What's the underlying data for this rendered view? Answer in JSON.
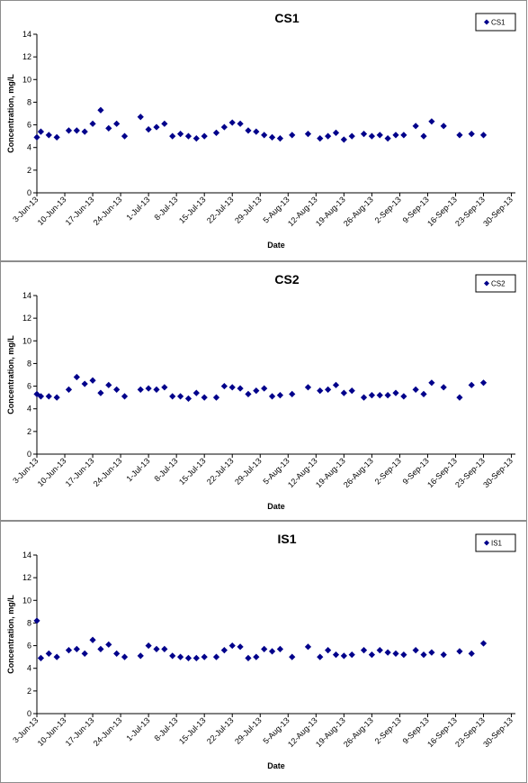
{
  "chart_data": [
    {
      "type": "scatter",
      "title": "CS1",
      "xlabel": "Date",
      "ylabel": "Concentration, mg/L",
      "ylim": [
        0,
        14
      ],
      "yticks": [
        0,
        2,
        4,
        6,
        8,
        10,
        12,
        14
      ],
      "x_tick_labels": [
        "3-Jun-13",
        "10-Jun-13",
        "17-Jun-13",
        "24-Jun-13",
        "1-Jul-13",
        "8-Jul-13",
        "15-Jul-13",
        "22-Jul-13",
        "29-Jul-13",
        "5-Aug-13",
        "12-Aug-13",
        "19-Aug-13",
        "26-Aug-13",
        "2-Sep-13",
        "9-Sep-13",
        "16-Sep-13",
        "23-Sep-13",
        "30-Sep-13"
      ],
      "xlim": [
        "2013-06-03",
        "2013-10-01"
      ],
      "legend_position": "top-right",
      "grid": false,
      "marker_color": "#00008B",
      "series": [
        {
          "name": "CS1",
          "points": [
            [
              "2013-06-03",
              4.9
            ],
            [
              "2013-06-04",
              5.4
            ],
            [
              "2013-06-06",
              5.1
            ],
            [
              "2013-06-08",
              4.9
            ],
            [
              "2013-06-11",
              5.5
            ],
            [
              "2013-06-13",
              5.5
            ],
            [
              "2013-06-15",
              5.4
            ],
            [
              "2013-06-17",
              6.1
            ],
            [
              "2013-06-19",
              7.3
            ],
            [
              "2013-06-21",
              5.7
            ],
            [
              "2013-06-23",
              6.1
            ],
            [
              "2013-06-25",
              5.0
            ],
            [
              "2013-06-29",
              6.7
            ],
            [
              "2013-07-01",
              5.6
            ],
            [
              "2013-07-03",
              5.8
            ],
            [
              "2013-07-05",
              6.1
            ],
            [
              "2013-07-07",
              5.0
            ],
            [
              "2013-07-09",
              5.2
            ],
            [
              "2013-07-11",
              5.0
            ],
            [
              "2013-07-13",
              4.8
            ],
            [
              "2013-07-15",
              5.0
            ],
            [
              "2013-07-18",
              5.3
            ],
            [
              "2013-07-20",
              5.8
            ],
            [
              "2013-07-22",
              6.2
            ],
            [
              "2013-07-24",
              6.1
            ],
            [
              "2013-07-26",
              5.5
            ],
            [
              "2013-07-28",
              5.4
            ],
            [
              "2013-07-30",
              5.1
            ],
            [
              "2013-08-01",
              4.9
            ],
            [
              "2013-08-03",
              4.8
            ],
            [
              "2013-08-06",
              5.1
            ],
            [
              "2013-08-10",
              5.2
            ],
            [
              "2013-08-13",
              4.8
            ],
            [
              "2013-08-15",
              5.0
            ],
            [
              "2013-08-17",
              5.3
            ],
            [
              "2013-08-19",
              4.7
            ],
            [
              "2013-08-21",
              5.0
            ],
            [
              "2013-08-24",
              5.2
            ],
            [
              "2013-08-26",
              5.0
            ],
            [
              "2013-08-28",
              5.1
            ],
            [
              "2013-08-30",
              4.8
            ],
            [
              "2013-09-01",
              5.1
            ],
            [
              "2013-09-03",
              5.1
            ],
            [
              "2013-09-06",
              5.9
            ],
            [
              "2013-09-08",
              5.0
            ],
            [
              "2013-09-10",
              6.3
            ],
            [
              "2013-09-13",
              5.9
            ],
            [
              "2013-09-17",
              5.1
            ],
            [
              "2013-09-20",
              5.2
            ],
            [
              "2013-09-23",
              5.1
            ]
          ]
        }
      ]
    },
    {
      "type": "scatter",
      "title": "CS2",
      "xlabel": "Date",
      "ylabel": "Concentration, mg/L",
      "ylim": [
        0,
        14
      ],
      "yticks": [
        0,
        2,
        4,
        6,
        8,
        10,
        12,
        14
      ],
      "x_tick_labels": [
        "3-Jun-13",
        "10-Jun-13",
        "17-Jun-13",
        "24-Jun-13",
        "1-Jul-13",
        "8-Jul-13",
        "15-Jul-13",
        "22-Jul-13",
        "29-Jul-13",
        "5-Aug-13",
        "12-Aug-13",
        "19-Aug-13",
        "26-Aug-13",
        "2-Sep-13",
        "9-Sep-13",
        "16-Sep-13",
        "23-Sep-13",
        "30-Sep-13"
      ],
      "xlim": [
        "2013-06-03",
        "2013-10-01"
      ],
      "legend_position": "top-right",
      "grid": false,
      "marker_color": "#00008B",
      "series": [
        {
          "name": "CS2",
          "points": [
            [
              "2013-06-03",
              5.3
            ],
            [
              "2013-06-04",
              5.1
            ],
            [
              "2013-06-06",
              5.1
            ],
            [
              "2013-06-08",
              5.0
            ],
            [
              "2013-06-11",
              5.7
            ],
            [
              "2013-06-13",
              6.8
            ],
            [
              "2013-06-15",
              6.2
            ],
            [
              "2013-06-17",
              6.5
            ],
            [
              "2013-06-19",
              5.4
            ],
            [
              "2013-06-21",
              6.1
            ],
            [
              "2013-06-23",
              5.7
            ],
            [
              "2013-06-25",
              5.1
            ],
            [
              "2013-06-29",
              5.7
            ],
            [
              "2013-07-01",
              5.8
            ],
            [
              "2013-07-03",
              5.7
            ],
            [
              "2013-07-05",
              5.9
            ],
            [
              "2013-07-07",
              5.1
            ],
            [
              "2013-07-09",
              5.1
            ],
            [
              "2013-07-11",
              4.9
            ],
            [
              "2013-07-13",
              5.4
            ],
            [
              "2013-07-15",
              5.0
            ],
            [
              "2013-07-18",
              5.0
            ],
            [
              "2013-07-20",
              6.0
            ],
            [
              "2013-07-22",
              5.9
            ],
            [
              "2013-07-24",
              5.8
            ],
            [
              "2013-07-26",
              5.3
            ],
            [
              "2013-07-28",
              5.6
            ],
            [
              "2013-07-30",
              5.8
            ],
            [
              "2013-08-01",
              5.1
            ],
            [
              "2013-08-03",
              5.2
            ],
            [
              "2013-08-06",
              5.3
            ],
            [
              "2013-08-10",
              5.9
            ],
            [
              "2013-08-13",
              5.6
            ],
            [
              "2013-08-15",
              5.7
            ],
            [
              "2013-08-17",
              6.1
            ],
            [
              "2013-08-19",
              5.4
            ],
            [
              "2013-08-21",
              5.6
            ],
            [
              "2013-08-24",
              5.0
            ],
            [
              "2013-08-26",
              5.2
            ],
            [
              "2013-08-28",
              5.2
            ],
            [
              "2013-08-30",
              5.2
            ],
            [
              "2013-09-01",
              5.4
            ],
            [
              "2013-09-03",
              5.1
            ],
            [
              "2013-09-06",
              5.7
            ],
            [
              "2013-09-08",
              5.3
            ],
            [
              "2013-09-10",
              6.3
            ],
            [
              "2013-09-13",
              5.9
            ],
            [
              "2013-09-17",
              5.0
            ],
            [
              "2013-09-20",
              6.1
            ],
            [
              "2013-09-23",
              6.3
            ]
          ]
        }
      ]
    },
    {
      "type": "scatter",
      "title": "IS1",
      "xlabel": "Date",
      "ylabel": "Concentration, mg/L",
      "ylim": [
        0,
        14
      ],
      "yticks": [
        0,
        2,
        4,
        6,
        8,
        10,
        12,
        14
      ],
      "x_tick_labels": [
        "3-Jun-13",
        "10-Jun-13",
        "17-Jun-13",
        "24-Jun-13",
        "1-Jul-13",
        "8-Jul-13",
        "15-Jul-13",
        "22-Jul-13",
        "29-Jul-13",
        "5-Aug-13",
        "12-Aug-13",
        "19-Aug-13",
        "26-Aug-13",
        "2-Sep-13",
        "9-Sep-13",
        "16-Sep-13",
        "23-Sep-13",
        "30-Sep-13"
      ],
      "xlim": [
        "2013-06-03",
        "2013-10-01"
      ],
      "legend_position": "top-right",
      "grid": false,
      "marker_color": "#00008B",
      "series": [
        {
          "name": "IS1",
          "points": [
            [
              "2013-06-03",
              8.2
            ],
            [
              "2013-06-04",
              4.9
            ],
            [
              "2013-06-06",
              5.3
            ],
            [
              "2013-06-08",
              5.0
            ],
            [
              "2013-06-11",
              5.6
            ],
            [
              "2013-06-13",
              5.7
            ],
            [
              "2013-06-15",
              5.3
            ],
            [
              "2013-06-17",
              6.5
            ],
            [
              "2013-06-19",
              5.7
            ],
            [
              "2013-06-21",
              6.1
            ],
            [
              "2013-06-23",
              5.3
            ],
            [
              "2013-06-25",
              5.0
            ],
            [
              "2013-06-29",
              5.1
            ],
            [
              "2013-07-01",
              6.0
            ],
            [
              "2013-07-03",
              5.7
            ],
            [
              "2013-07-05",
              5.7
            ],
            [
              "2013-07-07",
              5.1
            ],
            [
              "2013-07-09",
              5.0
            ],
            [
              "2013-07-11",
              4.9
            ],
            [
              "2013-07-13",
              4.9
            ],
            [
              "2013-07-15",
              5.0
            ],
            [
              "2013-07-18",
              5.0
            ],
            [
              "2013-07-20",
              5.6
            ],
            [
              "2013-07-22",
              6.0
            ],
            [
              "2013-07-24",
              5.9
            ],
            [
              "2013-07-26",
              4.9
            ],
            [
              "2013-07-28",
              5.0
            ],
            [
              "2013-07-30",
              5.7
            ],
            [
              "2013-08-01",
              5.5
            ],
            [
              "2013-08-03",
              5.7
            ],
            [
              "2013-08-06",
              5.0
            ],
            [
              "2013-08-10",
              5.9
            ],
            [
              "2013-08-13",
              5.0
            ],
            [
              "2013-08-15",
              5.6
            ],
            [
              "2013-08-17",
              5.2
            ],
            [
              "2013-08-19",
              5.1
            ],
            [
              "2013-08-21",
              5.2
            ],
            [
              "2013-08-24",
              5.6
            ],
            [
              "2013-08-26",
              5.2
            ],
            [
              "2013-08-28",
              5.6
            ],
            [
              "2013-08-30",
              5.4
            ],
            [
              "2013-09-01",
              5.3
            ],
            [
              "2013-09-03",
              5.2
            ],
            [
              "2013-09-06",
              5.6
            ],
            [
              "2013-09-08",
              5.2
            ],
            [
              "2013-09-10",
              5.4
            ],
            [
              "2013-09-13",
              5.2
            ],
            [
              "2013-09-17",
              5.5
            ],
            [
              "2013-09-20",
              5.3
            ],
            [
              "2013-09-23",
              6.2
            ]
          ]
        }
      ]
    }
  ]
}
